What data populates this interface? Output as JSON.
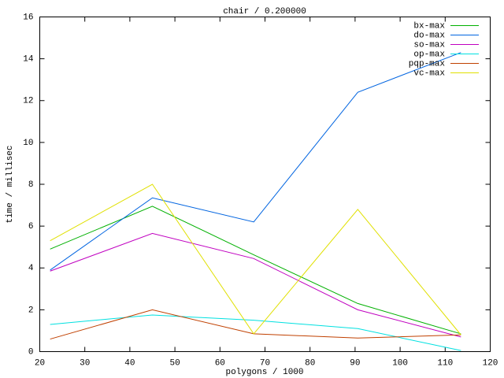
{
  "chart_data": {
    "type": "line",
    "title": "chair / 0.200000",
    "x_label": "polygons / 1000",
    "y_label": "time / millisec",
    "x": [
      22.3,
      45,
      67.5,
      90.6,
      113.5
    ],
    "series": [
      {
        "name": "bx-max",
        "color": "#00b000",
        "values": [
          4.9,
          6.95,
          4.63,
          2.3,
          0.85
        ]
      },
      {
        "name": "do-max",
        "color": "#0064e0",
        "values": [
          3.9,
          7.35,
          6.2,
          12.4,
          14.3
        ]
      },
      {
        "name": "so-max",
        "color": "#c000c0",
        "values": [
          3.85,
          5.65,
          4.45,
          2.0,
          0.7
        ]
      },
      {
        "name": "op-max",
        "color": "#00e0e0",
        "values": [
          1.3,
          1.75,
          1.5,
          1.1,
          0.05
        ]
      },
      {
        "name": "pqp-max",
        "color": "#c04000",
        "values": [
          0.6,
          2.0,
          0.85,
          0.65,
          0.8
        ]
      },
      {
        "name": "vc-max",
        "color": "#e0e000",
        "values": [
          5.3,
          8.0,
          0.85,
          6.8,
          0.8
        ]
      }
    ],
    "xlim": [
      20,
      120
    ],
    "xticks": [
      20,
      30,
      40,
      50,
      60,
      70,
      80,
      90,
      100,
      110,
      120
    ],
    "ylim": [
      0,
      16
    ],
    "yticks": [
      0,
      2,
      4,
      6,
      8,
      10,
      12,
      14,
      16
    ],
    "grid": false,
    "legend": "top-right"
  }
}
